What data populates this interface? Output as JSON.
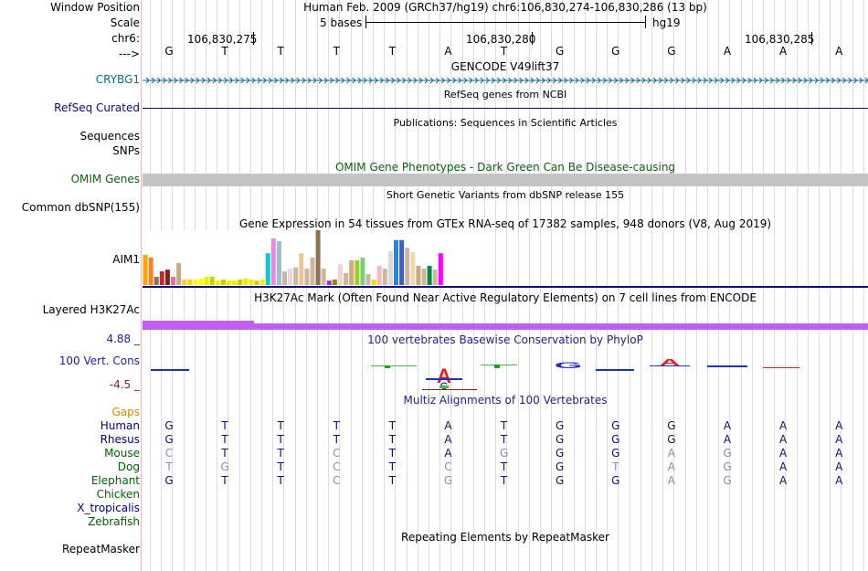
{
  "header": {
    "window_position_label": "Window Position",
    "window_position_text": "Human Feb. 2009 (GRCh37/hg19)   chr6:106,830,274-106,830,286 (13 bp)",
    "scale_label": "Scale",
    "scale_text": "5 bases",
    "scale_assembly": "hg19",
    "chrom_label": "chr6:",
    "arrow_label": "--->",
    "ruler_positions": [
      "106,830,275",
      "106,830,280",
      "106,830,285"
    ]
  },
  "sequence": [
    "G",
    "T",
    "T",
    "T",
    "T",
    "A",
    "T",
    "G",
    "G",
    "G",
    "A",
    "A",
    "A"
  ],
  "tracks": {
    "gencode": {
      "title": "GENCODE V49lift37",
      "gene_label": "CRYBG1"
    },
    "refseq": {
      "title": "RefSeq genes from NCBI",
      "label": "RefSeq Curated"
    },
    "publications": {
      "title": "Publications: Sequences in Scientific Articles",
      "label_1": "Sequences",
      "label_2": "SNPs"
    },
    "omim": {
      "title": "OMIM Gene Phenotypes - Dark Green Can Be Disease-causing",
      "label": "OMIM Genes"
    },
    "dbsnp": {
      "title": "Short Genetic Variants from dbSNP release 155",
      "label": "Common dbSNP(155)"
    },
    "gtex": {
      "title": "Gene Expression in 54 tissues from GTEx RNA-seq of 17382 samples, 948 donors (V8, Aug 2019)",
      "label": "AIM1"
    },
    "h3k27ac": {
      "title": "H3K27Ac Mark (Often Found Near Active Regulatory Elements) on 7 cell lines from ENCODE",
      "label": "Layered H3K27Ac"
    },
    "phylop": {
      "title": "100 vertebrates Basewise Conservation by PhyloP",
      "label": "100 Vert. Cons",
      "max": "4.88 _",
      "min": "-4.5 _"
    },
    "multiz": {
      "title": "Multiz Alignments of 100 Vertebrates",
      "gaps_label": "Gaps"
    },
    "repeatmasker": {
      "title": "Repeating Elements by RepeatMasker",
      "label": "RepeatMasker"
    }
  },
  "species": [
    {
      "name": "Human",
      "color": "#000080",
      "bases": [
        "G",
        "T",
        "T",
        "T",
        "T",
        "A",
        "T",
        "G",
        "G",
        "G",
        "A",
        "A",
        "A"
      ],
      "dim": [
        0,
        0,
        0,
        0,
        0,
        0,
        0,
        0,
        0,
        0,
        0,
        0,
        0
      ]
    },
    {
      "name": "Rhesus",
      "color": "#000080",
      "bases": [
        "G",
        "T",
        "T",
        "T",
        "T",
        "A",
        "T",
        "G",
        "G",
        "G",
        "A",
        "A",
        "A"
      ],
      "dim": [
        0,
        0,
        0,
        0,
        0,
        0,
        0,
        0,
        0,
        0,
        0,
        0,
        0
      ]
    },
    {
      "name": "Mouse",
      "color": "#006400",
      "bases": [
        "C",
        "T",
        "T",
        "C",
        "T",
        "A",
        "G",
        "G",
        "G",
        "A",
        "G",
        "A",
        "A"
      ],
      "dim": [
        1,
        0,
        0,
        1,
        0,
        0,
        1,
        0,
        0,
        1,
        1,
        0,
        0
      ]
    },
    {
      "name": "Dog",
      "color": "#006400",
      "bases": [
        "T",
        "G",
        "T",
        "C",
        "T",
        "C",
        "T",
        "G",
        "T",
        "A",
        "G",
        "A",
        "A"
      ],
      "dim": [
        1,
        1,
        0,
        1,
        0,
        1,
        0,
        0,
        1,
        1,
        1,
        0,
        0
      ]
    },
    {
      "name": "Elephant",
      "color": "#006400",
      "bases": [
        "G",
        "T",
        "T",
        "C",
        "T",
        "G",
        "T",
        "G",
        "G",
        "A",
        "G",
        "A",
        "A"
      ],
      "dim": [
        0,
        0,
        0,
        1,
        0,
        1,
        0,
        0,
        0,
        1,
        1,
        0,
        0
      ]
    },
    {
      "name": "Chicken",
      "color": "#006400",
      "bases": [],
      "dim": []
    },
    {
      "name": "X_tropicalis",
      "color": "#000080",
      "bases": [],
      "dim": []
    },
    {
      "name": "Zebrafish",
      "color": "#006400",
      "bases": [],
      "dim": []
    }
  ],
  "gtex_values": [
    0.55,
    0.5,
    0.15,
    0.25,
    0.28,
    0.15,
    0.4,
    0.1,
    0.1,
    0.1,
    0.12,
    0.15,
    0.15,
    0.08,
    0.1,
    0.08,
    0.08,
    0.1,
    0.12,
    0.1,
    0.08,
    0.1,
    0.58,
    0.85,
    0.8,
    0.25,
    0.3,
    0.32,
    0.58,
    0.3,
    0.5,
    1.0,
    0.3,
    0.08,
    0.1,
    0.38,
    0.22,
    0.45,
    0.45,
    0.5,
    0.2,
    0.1,
    0.35,
    0.3,
    0.62,
    0.82,
    0.82,
    0.68,
    0.6,
    0.35,
    0.3,
    0.35,
    0.28,
    0.58
  ],
  "gtex_colors": [
    "#FFA500",
    "#FF7F24",
    "#8B7355",
    "#CD2626",
    "#8B1A1A",
    "#EE6AA7",
    "#CDAA7D",
    "#FFD700",
    "#FFD700",
    "#FFFF00",
    "#FFFF00",
    "#EEEE00",
    "#CDCD00",
    "#EEEE00",
    "#CDCD00",
    "#EEEE00",
    "#EEEE00",
    "#CDCD00",
    "#EEEE00",
    "#EEEE00",
    "#CDCD00",
    "#EEEE00",
    "#00CED1",
    "#EE82EE",
    "#9AC0CD",
    "#CDB79E",
    "#EED5D2",
    "#CDB79E",
    "#EEC591",
    "#CDB79E",
    "#CDB79E",
    "#8B7355",
    "#CDB79E",
    "#9932CC",
    "#8B8B00",
    "#EED5D2",
    "#CDB79E",
    "#CDAA7D",
    "#9ACD32",
    "#7CCD7C",
    "#CDB79E",
    "#FFD700",
    "#FFB6C1",
    "#CDB79E",
    "#D9D9D9",
    "#1C86EE",
    "#3A5FCD",
    "#CDB79E",
    "#EED8AE",
    "#CDAA7D",
    "#CDB79E",
    "#008B45",
    "#CDB79E",
    "#FF00FF"
  ]
}
